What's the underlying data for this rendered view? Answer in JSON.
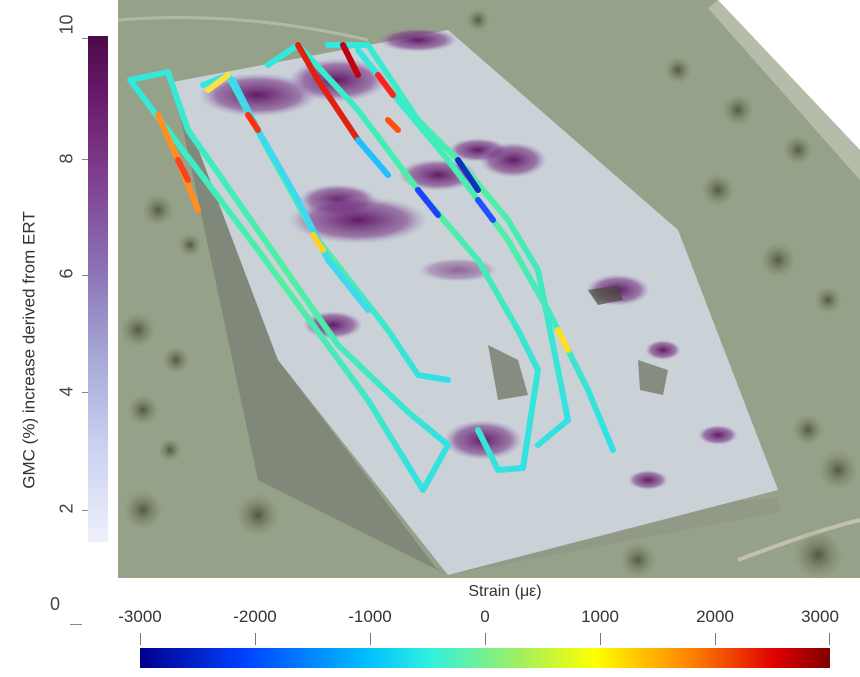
{
  "gmc_colorbar": {
    "title": "GMC (%) increase derived from ERT",
    "ticks": [
      "10",
      "8",
      "6",
      "4",
      "2",
      "0"
    ],
    "range": [
      0,
      10
    ]
  },
  "strain_colorbar": {
    "title": "Strain (με)",
    "ticks": [
      "-3000",
      "-2000",
      "-1000",
      "0",
      "1000",
      "2000",
      "3000"
    ],
    "range": [
      -3000,
      3000
    ]
  },
  "colors": {
    "terrain": "#8e9a80",
    "gmc_high": "#5a0f5a",
    "gmc_low": "#eef0fb",
    "strain_low": "#00008c",
    "strain_mid": "#30f0e0",
    "strain_high": "#800000"
  }
}
